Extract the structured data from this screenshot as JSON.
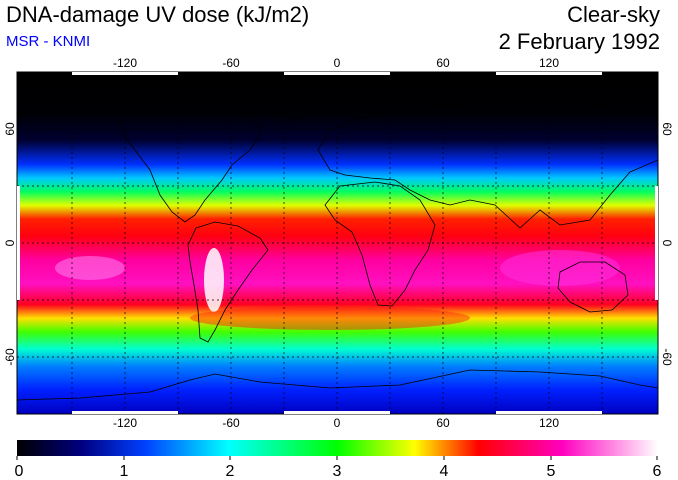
{
  "header": {
    "title": "DNA-damage UV dose (kJ/m2)",
    "subtitle": "MSR - KNMI",
    "sky_condition": "Clear-sky",
    "date": "2 February 1992"
  },
  "map": {
    "projection": "equirectangular",
    "lon_range": [
      -180,
      180
    ],
    "lat_range": [
      -90,
      90
    ],
    "lon_ticks": [
      "-120",
      "-60",
      "0",
      "60",
      "120"
    ],
    "lat_ticks": [
      "60",
      "0",
      "-60"
    ],
    "grid": "dashed, 30 degrees",
    "coastlines": true
  },
  "colorbar": {
    "labels": [
      "0",
      "1",
      "2",
      "3",
      "4",
      "5",
      "6"
    ],
    "range": [
      0,
      6
    ],
    "colors": [
      "#000000",
      "#0000c8",
      "#00ffff",
      "#00ff00",
      "#ffff00",
      "#ff0000",
      "#ff00ff",
      "#ffffff"
    ]
  }
}
